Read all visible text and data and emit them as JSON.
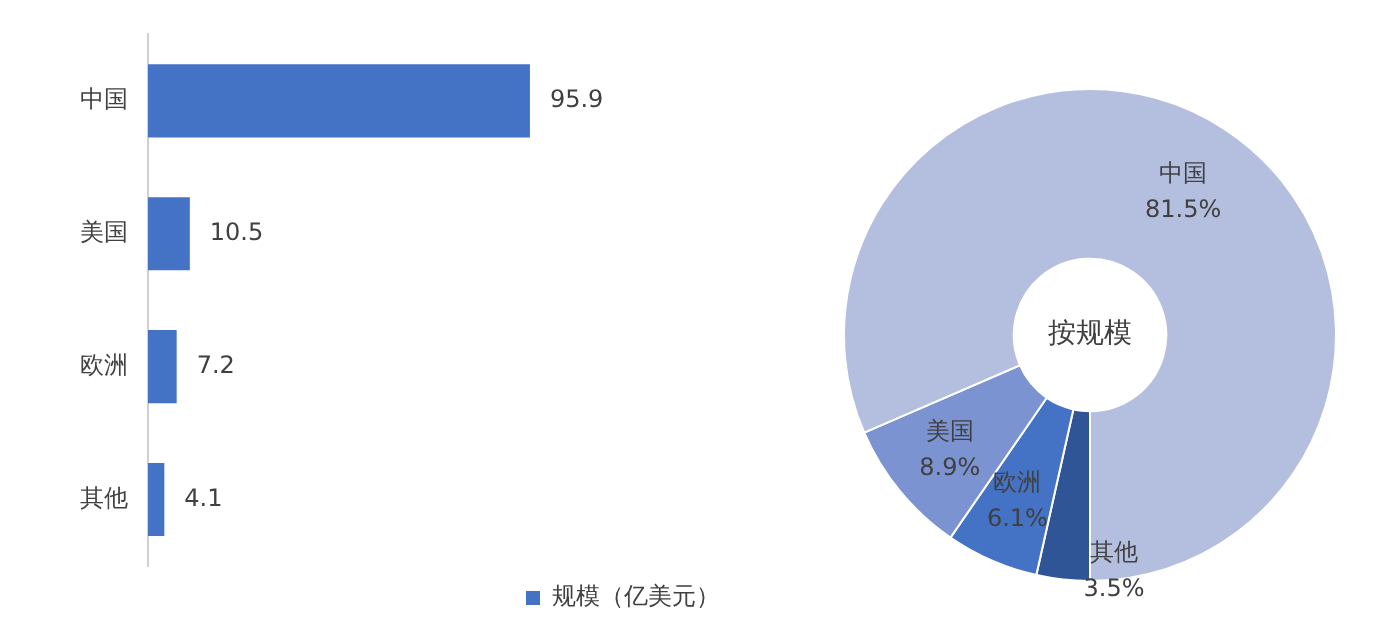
{
  "chart_data": [
    {
      "type": "bar",
      "orientation": "horizontal",
      "categories": [
        "中国",
        "美国",
        "欧洲",
        "其他"
      ],
      "series": [
        {
          "name": "规模（亿美元）",
          "color": "#4472c4",
          "values": [
            95.9,
            10.5,
            7.2,
            4.1
          ]
        }
      ],
      "data_labels": true,
      "legend": "bottom",
      "grid": false,
      "tick_labels": "y"
    },
    {
      "type": "donut",
      "title": "按规模",
      "categories": [
        "中国",
        "美国",
        "欧洲",
        "其他"
      ],
      "values": [
        81.5,
        8.9,
        6.1,
        3.5
      ],
      "colors": [
        "#b4bfe0",
        "#7b93d0",
        "#4472c4",
        "#2f5597"
      ],
      "value_labels": [
        "81.5%",
        "8.9%",
        "6.1%",
        "3.5%"
      ]
    }
  ]
}
